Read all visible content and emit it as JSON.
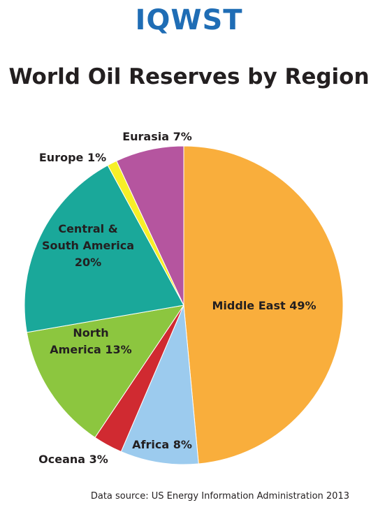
{
  "logo": "IQWST",
  "source": "Data source: US Energy Information Administration 2013",
  "chart_data": {
    "type": "pie",
    "title": "World Oil Reserves by Region",
    "unit": "%",
    "slices": [
      {
        "name": "Middle East",
        "value": 49,
        "label_lines": [
          "Middle East 49%"
        ],
        "color": "#f9ae3c"
      },
      {
        "name": "Africa",
        "value": 8,
        "label_lines": [
          "Africa 8%"
        ],
        "color": "#9ccbee"
      },
      {
        "name": "Oceana",
        "value": 3,
        "label_lines": [
          "Oceana 3%"
        ],
        "color": "#d02a31"
      },
      {
        "name": "North America",
        "value": 13,
        "label_lines": [
          "North",
          "America 13%"
        ],
        "color": "#8cc63f"
      },
      {
        "name": "Central & South America",
        "value": 20,
        "label_lines": [
          "Central &",
          "South America",
          "20%"
        ],
        "color": "#1aa89a"
      },
      {
        "name": "Europe",
        "value": 1,
        "label_lines": [
          "Europe 1%"
        ],
        "color": "#f7ef28"
      },
      {
        "name": "Eurasia",
        "value": 7,
        "label_lines": [
          "Eurasia 7%"
        ],
        "color": "#b5559f"
      }
    ]
  }
}
